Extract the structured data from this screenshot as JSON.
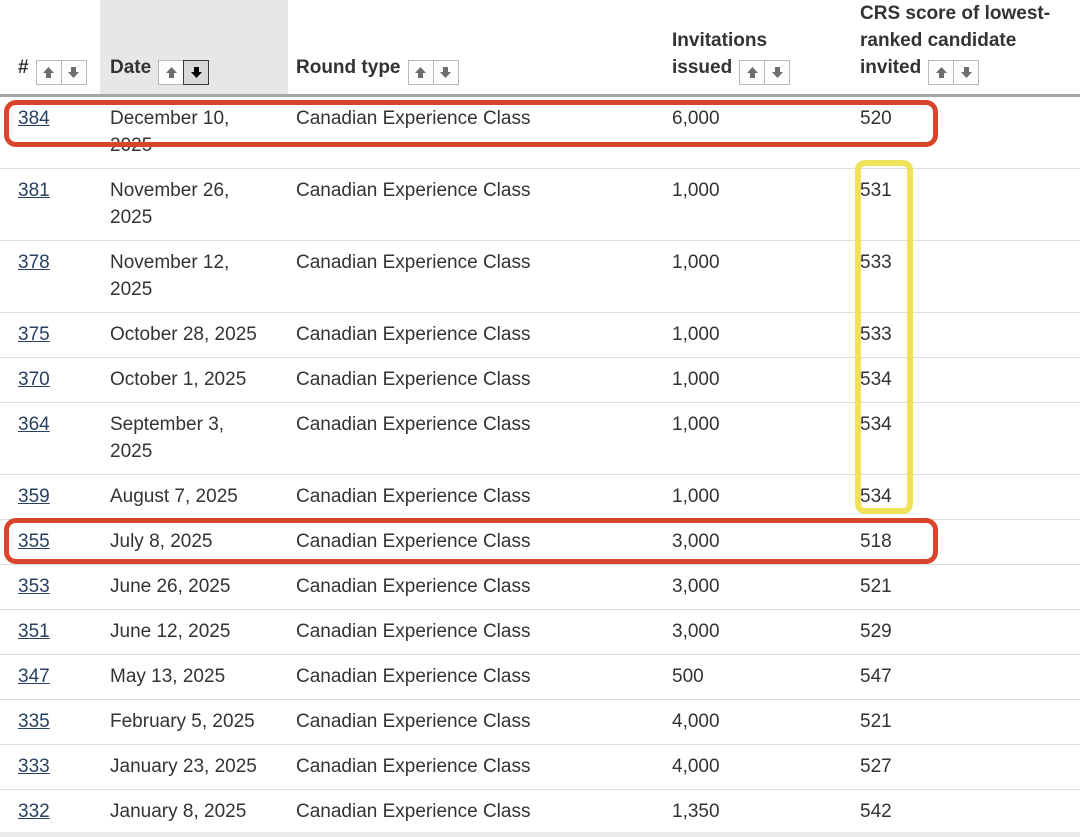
{
  "table": {
    "columns": [
      {
        "label": "#",
        "sortable": true,
        "active_sort": null
      },
      {
        "label": "Date",
        "sortable": true,
        "active_sort": "desc"
      },
      {
        "label": "Round type",
        "sortable": true,
        "active_sort": null
      },
      {
        "label": "Invitations issued",
        "sortable": true,
        "active_sort": null
      },
      {
        "label": "CRS score of lowest-ranked candidate invited",
        "sortable": true,
        "active_sort": null
      }
    ],
    "rows": [
      {
        "num": "384",
        "date": "December 10, 2025",
        "round_type": "Canadian Experience Class",
        "invitations": "6,000",
        "crs": "520"
      },
      {
        "num": "381",
        "date": "November 26, 2025",
        "round_type": "Canadian Experience Class",
        "invitations": "1,000",
        "crs": "531"
      },
      {
        "num": "378",
        "date": "November 12, 2025",
        "round_type": "Canadian Experience Class",
        "invitations": "1,000",
        "crs": "533"
      },
      {
        "num": "375",
        "date": "October 28, 2025",
        "round_type": "Canadian Experience Class",
        "invitations": "1,000",
        "crs": "533"
      },
      {
        "num": "370",
        "date": "October 1, 2025",
        "round_type": "Canadian Experience Class",
        "invitations": "1,000",
        "crs": "534"
      },
      {
        "num": "364",
        "date": "September 3, 2025",
        "round_type": "Canadian Experience Class",
        "invitations": "1,000",
        "crs": "534"
      },
      {
        "num": "359",
        "date": "August 7, 2025",
        "round_type": "Canadian Experience Class",
        "invitations": "1,000",
        "crs": "534"
      },
      {
        "num": "355",
        "date": "July 8, 2025",
        "round_type": "Canadian Experience Class",
        "invitations": "3,000",
        "crs": "518"
      },
      {
        "num": "353",
        "date": "June 26, 2025",
        "round_type": "Canadian Experience Class",
        "invitations": "3,000",
        "crs": "521"
      },
      {
        "num": "351",
        "date": "June 12, 2025",
        "round_type": "Canadian Experience Class",
        "invitations": "3,000",
        "crs": "529"
      },
      {
        "num": "347",
        "date": "May 13, 2025",
        "round_type": "Canadian Experience Class",
        "invitations": "500",
        "crs": "547"
      },
      {
        "num": "335",
        "date": "February 5, 2025",
        "round_type": "Canadian Experience Class",
        "invitations": "4,000",
        "crs": "521"
      },
      {
        "num": "333",
        "date": "January 23, 2025",
        "round_type": "Canadian Experience Class",
        "invitations": "4,000",
        "crs": "527"
      },
      {
        "num": "332",
        "date": "January 8, 2025",
        "round_type": "Canadian Experience Class",
        "invitations": "1,350",
        "crs": "542"
      }
    ]
  },
  "annotations": {
    "red_box_color": "#d9452c",
    "yellow_box_color": "#efe04a",
    "red_boxes": [
      {
        "row": "384"
      },
      {
        "row": "355"
      }
    ],
    "yellow_column_span": {
      "column": "crs",
      "from_row": "381",
      "to_row": "359"
    }
  },
  "colors": {
    "text": "#333333",
    "link": "#284162",
    "date_header_bg": "#e7e7e7",
    "header_separator": "#a6a6a6",
    "row_separator": "#dcdcdc",
    "bottom_strip": "#e9ebec"
  }
}
